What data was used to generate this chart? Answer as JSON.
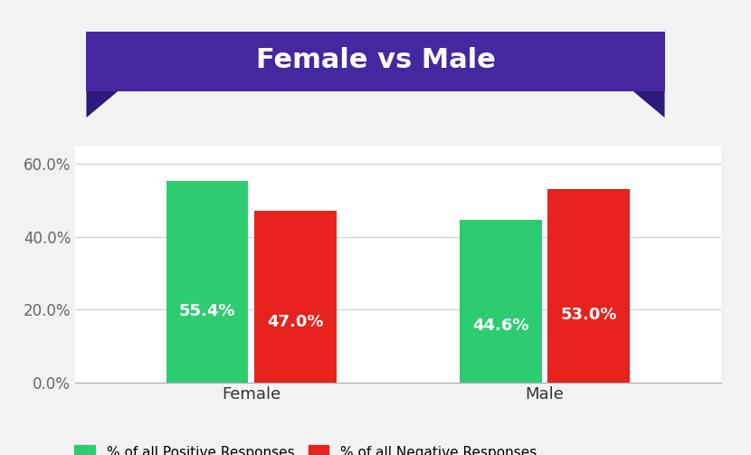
{
  "title": "Female vs Male",
  "categories": [
    "Female",
    "Male"
  ],
  "positive_values": [
    55.4,
    44.6
  ],
  "negative_values": [
    47.0,
    53.0
  ],
  "positive_color": "#2ecc71",
  "negative_color": "#e8221e",
  "bar_width": 0.28,
  "group_centers": [
    1,
    2
  ],
  "ylim": [
    0,
    65
  ],
  "yticks": [
    0.0,
    20.0,
    40.0,
    60.0
  ],
  "ytick_labels": [
    "0.0%",
    "20.0%",
    "40.0%",
    "60.0%"
  ],
  "background_color": "#f2f2f2",
  "plot_bg_color": "#ffffff",
  "title_bg_color": "#4527a0",
  "title_tail_color": "#2d1a7a",
  "title_text_color": "#ffffff",
  "title_fontsize": 22,
  "tick_label_fontsize": 12,
  "bar_label_fontsize": 13,
  "legend_label_positive": "% of all Positive Responses",
  "legend_label_negative": "% of all Negative Responses",
  "grid_color": "#cccccc",
  "cat_label_fontsize": 13,
  "xlim": [
    0.4,
    2.6
  ]
}
